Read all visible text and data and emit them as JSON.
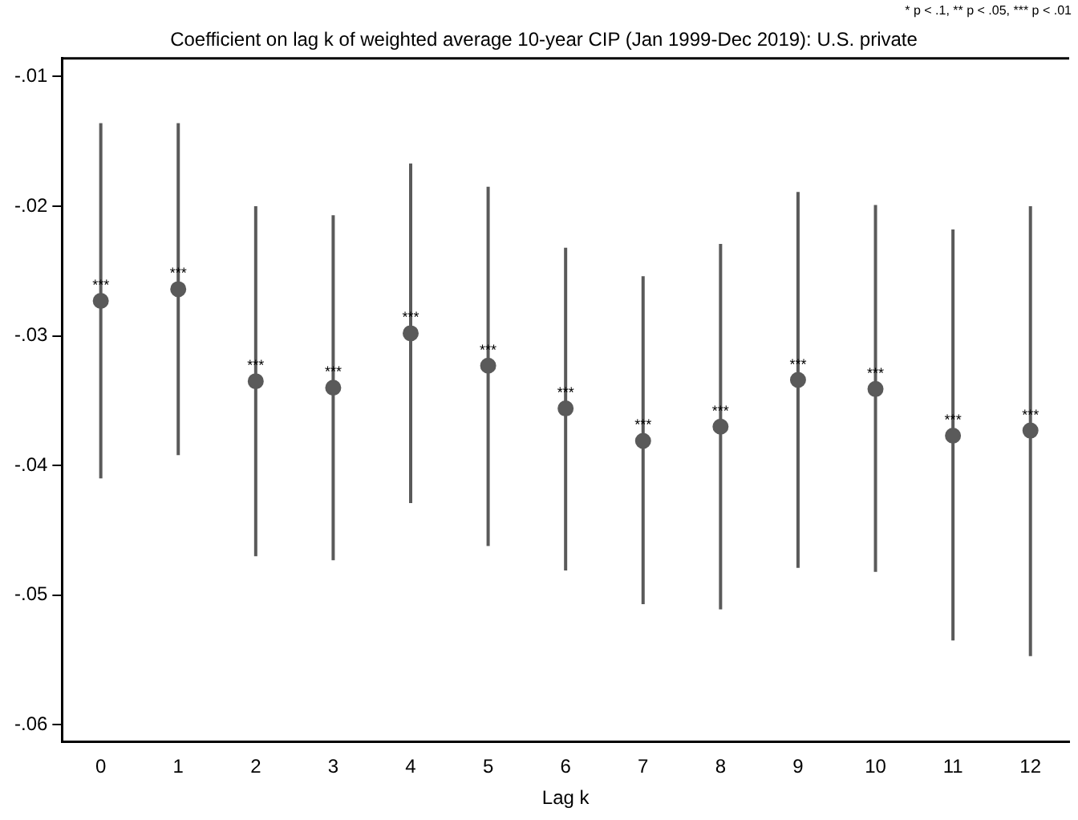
{
  "chart_data": {
    "type": "scatter",
    "title": "Coefficient on lag k of weighted average 10-year CIP (Jan 1999-Dec 2019): U.S. private",
    "xlabel": "Lag k",
    "annotations": [
      "* p < .1, ** p < .05, *** p < .01"
    ],
    "x": [
      0,
      1,
      2,
      3,
      4,
      5,
      6,
      7,
      8,
      9,
      10,
      11,
      12
    ],
    "values": [
      -0.0273,
      -0.0264,
      -0.0335,
      -0.034,
      -0.0298,
      -0.0323,
      -0.0356,
      -0.0381,
      -0.037,
      -0.0334,
      -0.0341,
      -0.0377,
      -0.0373
    ],
    "errors": [
      [
        -0.041,
        -0.0136
      ],
      [
        -0.0392,
        -0.0136
      ],
      [
        -0.047,
        -0.02
      ],
      [
        -0.0473,
        -0.0207
      ],
      [
        -0.0429,
        -0.0167
      ],
      [
        -0.0462,
        -0.0185
      ],
      [
        -0.0481,
        -0.0232
      ],
      [
        -0.0507,
        -0.0254
      ],
      [
        -0.0511,
        -0.0229
      ],
      [
        -0.0479,
        -0.0189
      ],
      [
        -0.0482,
        -0.0199
      ],
      [
        -0.0535,
        -0.0218
      ],
      [
        -0.0547,
        -0.02
      ]
    ],
    "value_labels": [
      "***",
      "***",
      "***",
      "***",
      "***",
      "***",
      "***",
      "***",
      "***",
      "***",
      "***",
      "***",
      "***"
    ],
    "color": "#5a5a5a",
    "marker": "circle",
    "grid": false,
    "legend": false,
    "xlim": [
      -0.5,
      12.5
    ],
    "xticks": [
      0,
      1,
      2,
      3,
      4,
      5,
      6,
      7,
      8,
      9,
      10,
      11,
      12
    ],
    "ylim": [
      -0.0613,
      -0.0086
    ],
    "yticks": [
      {
        "value": -0.06,
        "label": "-.06"
      },
      {
        "value": -0.05,
        "label": "-.05"
      },
      {
        "value": -0.04,
        "label": "-.04"
      },
      {
        "value": -0.03,
        "label": "-.03"
      },
      {
        "value": -0.02,
        "label": "-.02"
      },
      {
        "value": -0.01,
        "label": "-.01"
      }
    ]
  }
}
